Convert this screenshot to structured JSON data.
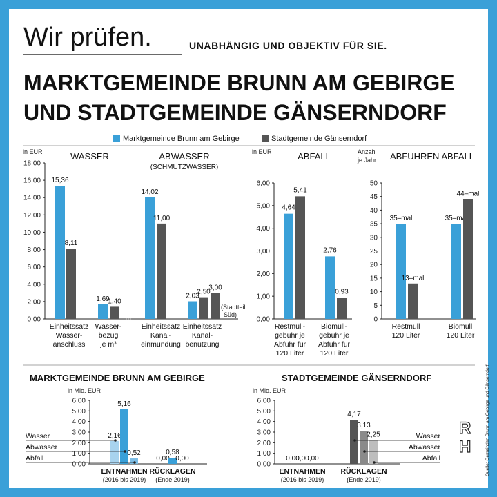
{
  "header": {
    "script_title": "Wir prüfen.",
    "tagline": "UNABHÄNGIG UND OBJEKTIV FÜR SIE.",
    "title_line1": "MARKTGEMEINDE BRUNN AM GEBIRGE",
    "title_line2": "UND STADTGEMEINDE GÄNSERNDORF"
  },
  "legend": {
    "items": [
      {
        "name": "Marktgemeinde Brunn am Gebirge",
        "color": "#3aa0d8"
      },
      {
        "name": "Stadtgemeinde Gänserndorf",
        "color": "#555555"
      }
    ]
  },
  "colors": {
    "brunn": "#3aa0d8",
    "gaense": "#555555",
    "frame": "#3aa0d8",
    "light_blue": "#a8d3ee",
    "mid_blue": "#7dbde5",
    "light_gray": "#bdbdbd",
    "mid_gray": "#8a8a8a"
  },
  "chart_data": [
    {
      "type": "bar",
      "unit": "in EUR",
      "ylim": [
        0,
        18
      ],
      "yticks": [
        "0,00",
        "2,00",
        "4,00",
        "6,00",
        "8,00",
        "10,00",
        "12,00",
        "14,00",
        "16,00",
        "18,00"
      ],
      "groups": [
        {
          "heading": "WASSER",
          "heading2": "",
          "categories": [
            {
              "label": [
                "Einheitssatz",
                "Wasser-",
                "anschluss"
              ],
              "values": [
                15.36,
                8.11
              ],
              "labels": [
                "15,36",
                "8,11"
              ],
              "note": ""
            },
            {
              "label": [
                "Wasser-",
                "bezug",
                "je m³"
              ],
              "values": [
                1.69,
                1.4
              ],
              "labels": [
                "1,69",
                "1,40"
              ],
              "note": ""
            }
          ]
        },
        {
          "heading": "ABWASSER",
          "heading2": "(SCHMUTZWASSER)",
          "categories": [
            {
              "label": [
                "Einheitssatz",
                "Kanal-",
                "einmündung"
              ],
              "values": [
                14.02,
                11.0
              ],
              "labels": [
                "14,02",
                "11,00"
              ],
              "note": ""
            },
            {
              "label": [
                "Einheitssatz",
                "Kanal-",
                "benützung"
              ],
              "values": [
                2.03,
                2.5,
                3.0
              ],
              "labels": [
                "2,03",
                "2,50",
                "3,00"
              ],
              "note": "(Stadtteil Süd)"
            }
          ]
        }
      ]
    },
    {
      "type": "bar",
      "unit": "in EUR",
      "heading": "ABFALL",
      "ylim": [
        0,
        6
      ],
      "yticks": [
        "0,00",
        "1,00",
        "2,00",
        "3,00",
        "4,00",
        "5,00",
        "6,00"
      ],
      "categories": [
        {
          "label": [
            "Restmüll-",
            "gebühr je",
            "Abfuhr für",
            "120 Liter"
          ],
          "values": [
            4.64,
            5.41
          ],
          "labels": [
            "4,64",
            "5,41"
          ]
        },
        {
          "label": [
            "Biomüll-",
            "gebühr je",
            "Abfuhr für",
            "120 Liter"
          ],
          "values": [
            2.76,
            0.93
          ],
          "labels": [
            "2,76",
            "0,93"
          ]
        }
      ]
    },
    {
      "type": "bar",
      "unit": [
        "Anzahl",
        "je Jahr"
      ],
      "heading": "ABFUHREN ABFALL",
      "ylim": [
        0,
        50
      ],
      "yticks": [
        "0",
        "5",
        "10",
        "15",
        "20",
        "25",
        "30",
        "35",
        "40",
        "45",
        "50"
      ],
      "categories": [
        {
          "label": [
            "Restmüll",
            "120 Liter"
          ],
          "values": [
            35,
            13
          ],
          "labels": [
            "35–mal",
            "13–mal"
          ]
        },
        {
          "label": [
            "Biomüll",
            "120 Liter"
          ],
          "values": [
            35,
            44
          ],
          "labels": [
            "35–mal",
            "44–mal"
          ]
        }
      ]
    },
    {
      "type": "bar",
      "title": "MARKTGEMEINDE BRUNN AM GEBIRGE",
      "unit": "in Mio. EUR",
      "ylim": [
        0,
        6
      ],
      "yticks": [
        "0,00",
        "1,00",
        "2,00",
        "3,00",
        "4,00",
        "5,00",
        "6,00"
      ],
      "side_labels": [
        "Wasser",
        "Abwasser",
        "Abfall"
      ],
      "groups": [
        {
          "label": "ENTNAHMEN",
          "sub": "(2016 bis 2019)",
          "values": [
            2.16,
            5.16,
            0.52
          ],
          "labels": [
            "2,16",
            "5,16",
            "0,52"
          ]
        },
        {
          "label": "RÜCKLAGEN",
          "sub": "(Ende 2019)",
          "values": [
            0.0,
            0.58,
            0.0
          ],
          "labels": [
            "0,00",
            "0,58",
            "0,00"
          ]
        }
      ]
    },
    {
      "type": "bar",
      "title": "STADTGEMEINDE GÄNSERNDORF",
      "unit": "in Mio. EUR",
      "ylim": [
        0,
        6
      ],
      "yticks": [
        "0,00",
        "1,00",
        "2,00",
        "3,00",
        "4,00",
        "5,00",
        "6,00"
      ],
      "side_labels": [
        "Wasser",
        "Abwasser",
        "Abfall"
      ],
      "groups": [
        {
          "label": "ENTNAHMEN",
          "sub": "(2016 bis 2019)",
          "values": [
            0.0,
            0.0,
            0.0
          ],
          "labels": [
            "0,00",
            "0,00",
            "0,00"
          ]
        },
        {
          "label": "RÜCKLAGEN",
          "sub": "(Ende 2019)",
          "values": [
            4.17,
            3.13,
            2.25
          ],
          "labels": [
            "4,17",
            "3,13",
            "2,25"
          ]
        }
      ]
    }
  ],
  "footer": {
    "source": "Quelle: Gemeinden Brunn am Gebirge und Gänserndorf",
    "logo": "RH"
  }
}
